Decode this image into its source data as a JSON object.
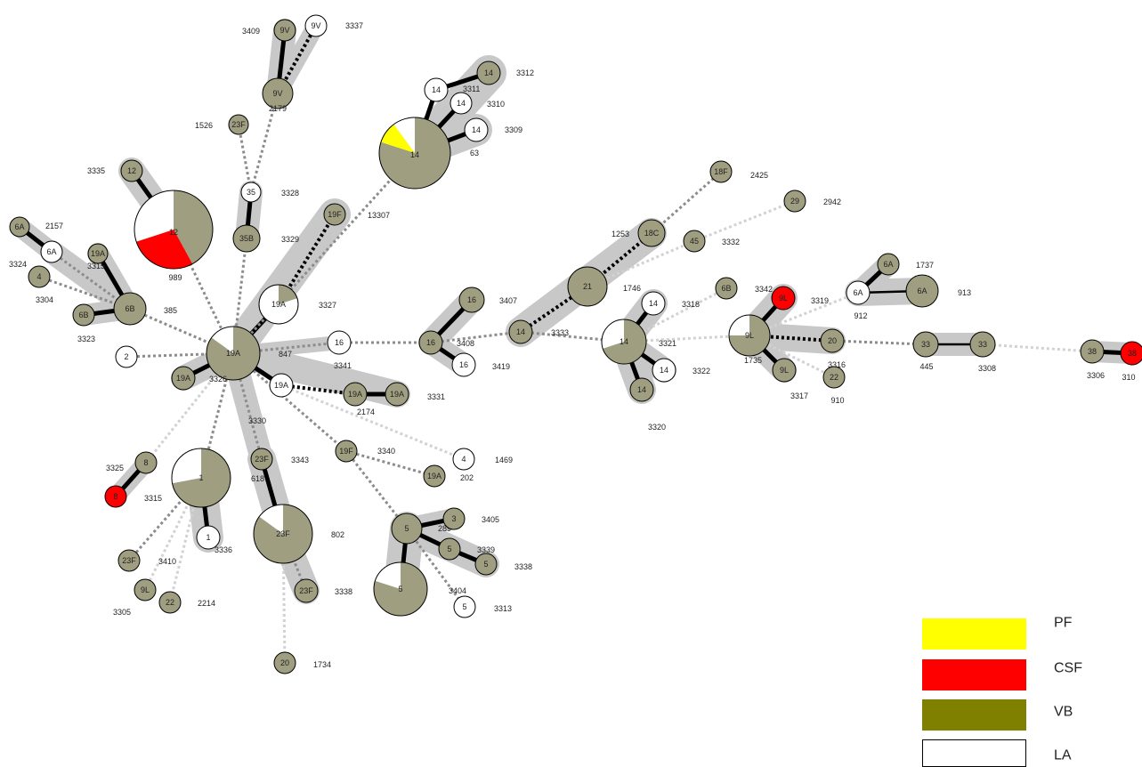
{
  "colors": {
    "PF": "#ffff00",
    "CSF": "#ff0000",
    "VB": "#a09e80",
    "VB_legend": "#808000",
    "LA": "#ffffff",
    "halo": "#c8c8c8",
    "edge_solid": "#000000",
    "edge_dotted_dark": "#000000",
    "edge_dotted_mid": "#8c8c8c",
    "edge_dotted_light": "#d2d2d2"
  },
  "legend": [
    {
      "key": "PF",
      "label": "PF"
    },
    {
      "key": "CSF",
      "label": "CSF"
    },
    {
      "key": "VB",
      "label": "VB"
    },
    {
      "key": "LA",
      "label": "LA"
    }
  ],
  "nodes": [
    {
      "id": "9V_3409",
      "st": "9V",
      "label": "3409",
      "pie": {
        "VB": 1
      }
    },
    {
      "id": "9V_3337",
      "st": "9V",
      "label": "3337",
      "pie": {
        "LA": 1
      }
    },
    {
      "id": "9V_2179",
      "st": "9V",
      "label": "2179",
      "pie": {
        "VB": 1
      }
    },
    {
      "id": "23F_1526",
      "st": "23F",
      "label": "1526",
      "pie": {
        "VB": 1
      }
    },
    {
      "id": "35_3328",
      "st": "35",
      "label": "3328",
      "pie": {
        "LA": 1
      }
    },
    {
      "id": "35B_3329",
      "st": "35B",
      "label": "3329",
      "pie": {
        "VB": 1
      }
    },
    {
      "id": "12_3335",
      "st": "12",
      "label": "3335",
      "pie": {
        "VB": 1
      }
    },
    {
      "id": "12_989",
      "st": "12",
      "label": "989",
      "pie": {
        "VB": 0.42,
        "CSF": 0.28,
        "LA": 0.3
      }
    },
    {
      "id": "6A_2157",
      "st": "6A",
      "label": "2157",
      "pie": {
        "VB": 1
      }
    },
    {
      "id": "6A_3315b",
      "st": "6A",
      "label": "3315",
      "pie": {
        "LA": 1
      }
    },
    {
      "id": "19A_w",
      "st": "19A",
      "label": "",
      "pie": {
        "VB": 1
      }
    },
    {
      "id": "4_3304",
      "st": "4",
      "label": "3304",
      "pie": {
        "VB": 1
      }
    },
    {
      "id": "4_3324",
      "st": "",
      "label": "3324",
      "pie": {
        "VB": 1
      }
    },
    {
      "id": "6B_3323",
      "st": "6B",
      "label": "3323",
      "pie": {
        "VB": 1
      }
    },
    {
      "id": "6B_385",
      "st": "6B",
      "label": "385",
      "pie": {
        "VB": 1
      }
    },
    {
      "id": "2_2",
      "st": "2",
      "label": "",
      "pie": {
        "LA": 1
      }
    },
    {
      "id": "19A_847",
      "st": "19A",
      "label": "847",
      "pie": {
        "VB": 0.85,
        "LA": 0.15
      }
    },
    {
      "id": "19A_3326",
      "st": "19A",
      "label": "3326",
      "pie": {
        "VB": 1
      }
    },
    {
      "id": "19A_3327",
      "st": "19A",
      "label": "3327",
      "pie": {
        "VB": 0.2,
        "LA": 0.8
      }
    },
    {
      "id": "19F_13307",
      "st": "19F",
      "label": "13307",
      "pie": {
        "VB": 1
      }
    },
    {
      "id": "14_63",
      "st": "14",
      "label": "63",
      "pie": {
        "VB": 0.8,
        "PF": 0.1,
        "LA": 0.1
      }
    },
    {
      "id": "14_3311",
      "st": "14",
      "label": "3311",
      "pie": {
        "LA": 1
      }
    },
    {
      "id": "14_3312",
      "st": "14",
      "label": "3312",
      "pie": {
        "VB": 1
      }
    },
    {
      "id": "14_3310",
      "st": "14",
      "label": "3310",
      "pie": {
        "LA": 1
      }
    },
    {
      "id": "14_3309",
      "st": "14",
      "label": "3309",
      "pie": {
        "LA": 1
      }
    },
    {
      "id": "16_3341",
      "st": "16",
      "label": "3341",
      "pie": {
        "LA": 1
      }
    },
    {
      "id": "19A_2174",
      "st": "19A",
      "label": "2174",
      "pie": {
        "LA": 1
      }
    },
    {
      "id": "19A_3331a",
      "st": "19A",
      "label": "",
      "pie": {
        "VB": 1
      }
    },
    {
      "id": "19A_3331",
      "st": "19A",
      "label": "3331",
      "pie": {
        "VB": 1
      }
    },
    {
      "id": "3330_lbl",
      "st": "",
      "label": "3330",
      "pie": {}
    },
    {
      "id": "16_3408",
      "st": "16",
      "label": "3408",
      "pie": {
        "VB": 1
      }
    },
    {
      "id": "16_3407",
      "st": "16",
      "label": "3407",
      "pie": {
        "VB": 1
      }
    },
    {
      "id": "16_3419",
      "st": "16",
      "label": "3419",
      "pie": {
        "LA": 1
      }
    },
    {
      "id": "14_3333",
      "st": "14",
      "label": "3333",
      "pie": {
        "VB": 1
      }
    },
    {
      "id": "21_1746",
      "st": "21",
      "label": "1746",
      "pie": {
        "VB": 1
      }
    },
    {
      "id": "18C_1253",
      "st": "18C",
      "label": "1253",
      "pie": {
        "VB": 1
      }
    },
    {
      "id": "18F_2425",
      "st": "18F",
      "label": "2425",
      "pie": {
        "VB": 1
      }
    },
    {
      "id": "45_3332",
      "st": "45",
      "label": "3332",
      "pie": {
        "VB": 1
      }
    },
    {
      "id": "29_2942",
      "st": "29",
      "label": "2942",
      "pie": {
        "VB": 1
      }
    },
    {
      "id": "14_3321",
      "st": "14",
      "label": "3321",
      "pie": {
        "VB": 0.7,
        "LA": 0.3
      }
    },
    {
      "id": "14_3318",
      "st": "14",
      "label": "3318",
      "pie": {
        "LA": 1
      }
    },
    {
      "id": "14_3322",
      "st": "14",
      "label": "3322",
      "pie": {
        "LA": 1
      }
    },
    {
      "id": "14_3320",
      "st": "14",
      "label": "3320",
      "pie": {
        "VB": 1
      }
    },
    {
      "id": "6B_3342",
      "st": "6B",
      "label": "3342",
      "pie": {
        "VB": 1
      }
    },
    {
      "id": "9L_3319",
      "st": "9L",
      "label": "3319",
      "pie": {
        "CSF": 1
      }
    },
    {
      "id": "9L_1735",
      "st": "9L",
      "label": "1735",
      "pie": {
        "VB": 0.75,
        "LA": 0.25
      }
    },
    {
      "id": "9L_3317",
      "st": "9L",
      "label": "3317",
      "pie": {
        "VB": 1
      }
    },
    {
      "id": "20_3316",
      "st": "20",
      "label": "3316",
      "pie": {
        "VB": 1
      }
    },
    {
      "id": "22_910",
      "st": "22",
      "label": "910",
      "pie": {
        "VB": 1
      }
    },
    {
      "id": "6A_912",
      "st": "6A",
      "label": "912",
      "pie": {
        "LA": 1
      }
    },
    {
      "id": "6A_1737",
      "st": "6A",
      "label": "1737",
      "pie": {
        "VB": 1
      }
    },
    {
      "id": "6A_913",
      "st": "6A",
      "label": "913",
      "pie": {
        "VB": 1
      }
    },
    {
      "id": "33_445",
      "st": "33",
      "label": "445",
      "pie": {
        "VB": 1
      }
    },
    {
      "id": "33_3308",
      "st": "33",
      "label": "3308",
      "pie": {
        "VB": 1
      }
    },
    {
      "id": "38_3306",
      "st": "38",
      "label": "3306",
      "pie": {
        "VB": 1
      }
    },
    {
      "id": "38_310",
      "st": "38",
      "label": "310",
      "pie": {
        "CSF": 1
      }
    },
    {
      "id": "8_3325",
      "st": "8",
      "label": "3325",
      "pie": {
        "VB": 1
      }
    },
    {
      "id": "8_3315",
      "st": "8",
      "label": "3315",
      "pie": {
        "CSF": 1
      }
    },
    {
      "id": "1_618",
      "st": "1",
      "label": "618",
      "pie": {
        "VB": 0.72,
        "LA": 0.28
      }
    },
    {
      "id": "1_3336",
      "st": "1",
      "label": "3336",
      "pie": {
        "LA": 1
      }
    },
    {
      "id": "23F_3410",
      "st": "23F",
      "label": "3410",
      "pie": {
        "VB": 1
      }
    },
    {
      "id": "9L_3305",
      "st": "9L",
      "label": "3305",
      "pie": {
        "VB": 1
      }
    },
    {
      "id": "22_2214",
      "st": "22",
      "label": "2214",
      "pie": {
        "VB": 1
      }
    },
    {
      "id": "23F_3343",
      "st": "23F",
      "label": "3343",
      "pie": {
        "VB": 1
      }
    },
    {
      "id": "23F_802",
      "st": "23F",
      "label": "802",
      "pie": {
        "VB": 0.85,
        "LA": 0.15
      }
    },
    {
      "id": "23F_3338",
      "st": "23F",
      "label": "3338",
      "pie": {
        "VB": 1
      }
    },
    {
      "id": "20_1734",
      "st": "20",
      "label": "1734",
      "pie": {
        "VB": 1
      }
    },
    {
      "id": "19F_3340",
      "st": "19F",
      "label": "3340",
      "pie": {
        "VB": 1
      }
    },
    {
      "id": "19A_202",
      "st": "19A",
      "label": "202",
      "pie": {
        "VB": 1
      }
    },
    {
      "id": "4_1469",
      "st": "4",
      "label": "1469",
      "pie": {
        "LA": 1
      }
    },
    {
      "id": "5_289",
      "st": "5",
      "label": "289",
      "pie": {
        "VB": 1
      }
    },
    {
      "id": "3_3405",
      "st": "3",
      "label": "3405",
      "pie": {
        "VB": 1
      }
    },
    {
      "id": "5_3339",
      "st": "5",
      "label": "3339",
      "pie": {
        "VB": 1
      }
    },
    {
      "id": "5_3338",
      "st": "5",
      "label": "3338",
      "pie": {
        "VB": 1
      }
    },
    {
      "id": "5_3404",
      "st": "5",
      "label": "3404",
      "pie": {
        "VB": 0.8,
        "LA": 0.2
      }
    },
    {
      "id": "5_3313",
      "st": "5",
      "label": "3313",
      "pie": {
        "LA": 1
      }
    }
  ]
}
